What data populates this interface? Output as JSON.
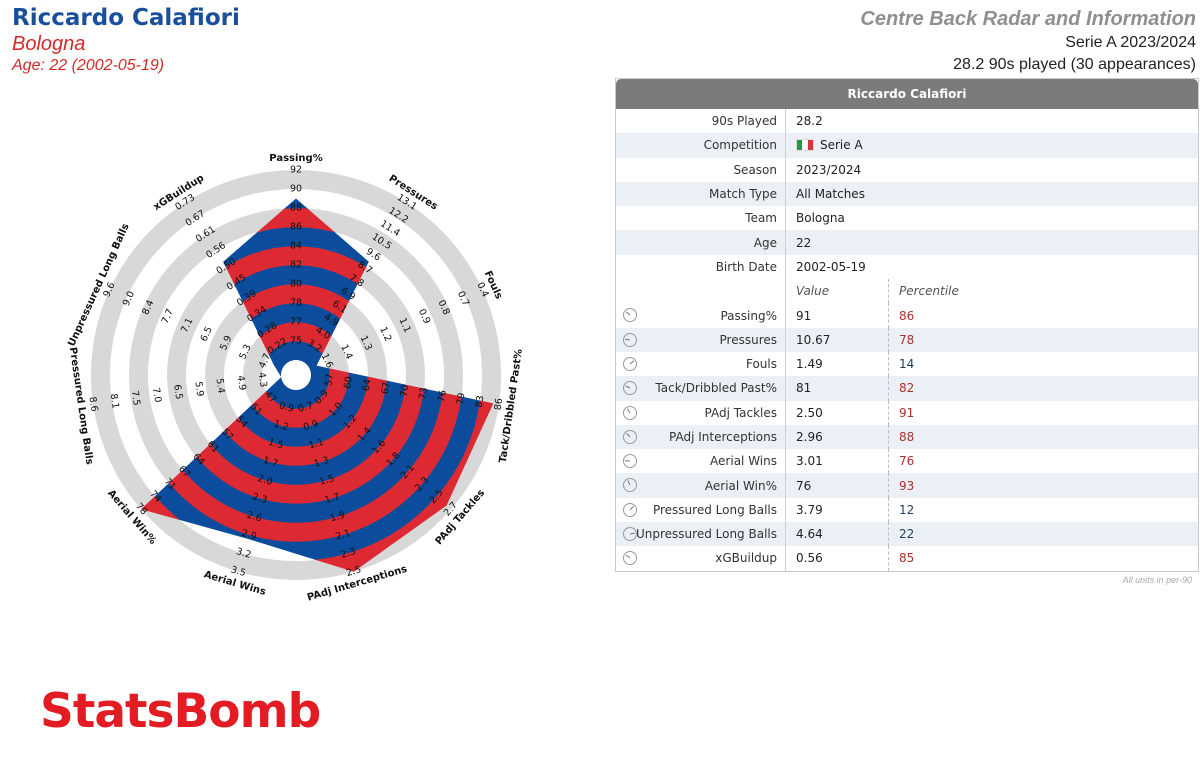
{
  "header": {
    "player_name": "Riccardo Calafiori",
    "team": "Bologna",
    "age_line": "Age: 22 (2002-05-19)",
    "title": "Centre Back Radar and Information",
    "league_season": "Serie A 2023/2024",
    "played": "28.2 90s played (30 appearances)"
  },
  "colors": {
    "blue": "#0b4d9c",
    "red": "#dd2a32",
    "ring_grey": "#d8d8d8",
    "brand": "#e31b23"
  },
  "chart_data": {
    "type": "radar",
    "player": "Riccardo Calafiori",
    "axes": [
      {
        "label": "Passing%",
        "ticks": [
          "75",
          "77",
          "78",
          "80",
          "82",
          "84",
          "86",
          "88",
          "90",
          "92"
        ],
        "value": 91,
        "percentile": 86
      },
      {
        "label": "Pressures",
        "ticks": [
          "3.2",
          "4.0",
          "4.9",
          "6.1",
          "6.9",
          "7.8",
          "8.7",
          "9.6",
          "10.5",
          "11.4",
          "12.2",
          "13.1"
        ],
        "value": 10.67,
        "percentile": 78
      },
      {
        "label": "Fouls",
        "ticks": [
          "1.6",
          "1.4",
          "1.3",
          "1.2",
          "1.1",
          "0.9",
          "0.8",
          "0.7",
          "0.4"
        ],
        "value": 1.49,
        "percentile": 14
      },
      {
        "label": "Tack/Dribbled Past%",
        "ticks": [
          "57",
          "60",
          "64",
          "67",
          "70",
          "73",
          "76",
          "79",
          "83",
          "86"
        ],
        "value": 81,
        "percentile": 82
      },
      {
        "label": "PAdj Tackles",
        "ticks": [
          "0.9",
          "1.0",
          "1.2",
          "1.4",
          "1.6",
          "1.8",
          "2.1",
          "2.3",
          "2.5",
          "2.7"
        ],
        "value": 2.5,
        "percentile": 91
      },
      {
        "label": "PAdj Interceptions",
        "ticks": [
          "0.7",
          "0.9",
          "1.1",
          "1.3",
          "1.5",
          "1.7",
          "1.9",
          "2.1",
          "2.3",
          "2.5"
        ],
        "value": 2.96,
        "percentile": 88
      },
      {
        "label": "Aerial Wins",
        "ticks": [
          "0.9",
          "1.2",
          "1.5",
          "1.7",
          "2.0",
          "2.3",
          "2.6",
          "2.9",
          "3.2",
          "3.5"
        ],
        "value": 3.01,
        "percentile": 76
      },
      {
        "label": "Aerial Win%",
        "ticks": [
          "47",
          "51",
          "54",
          "57",
          "61",
          "64",
          "67",
          "71",
          "74",
          "78"
        ],
        "value": 76,
        "percentile": 93
      },
      {
        "label": "Pressured Long Balls",
        "ticks": [
          "4.3",
          "4.9",
          "5.4",
          "5.9",
          "6.5",
          "7.0",
          "7.5",
          "8.1",
          "8.6"
        ],
        "value": 3.79,
        "percentile": 12
      },
      {
        "label": "Unpressured Long Balls",
        "ticks": [
          "4.7",
          "5.3",
          "5.9",
          "6.5",
          "7.1",
          "7.7",
          "8.4",
          "9.0",
          "9.6"
        ],
        "value": 4.64,
        "percentile": 22
      },
      {
        "label": "xGBuildup",
        "ticks": [
          "0.22",
          "0.28",
          "0.34",
          "0.39",
          "0.45",
          "0.50",
          "0.56",
          "0.61",
          "0.67",
          "0.73"
        ],
        "value": 0.56,
        "percentile": 85
      }
    ],
    "polygon_levels": [
      8.5,
      6.3,
      0.4,
      9.7,
      9.7,
      10,
      8.2,
      10,
      0,
      0.5,
      6.3
    ]
  },
  "table": {
    "header": "Riccardo Calafiori",
    "info": [
      {
        "label": "90s Played",
        "value": "28.2"
      },
      {
        "label": "Competition",
        "value": "Serie A",
        "flag": true
      },
      {
        "label": "Season",
        "value": "2023/2024"
      },
      {
        "label": "Match Type",
        "value": "All Matches"
      },
      {
        "label": "Team",
        "value": "Bologna"
      },
      {
        "label": "Age",
        "value": "22"
      },
      {
        "label": "Birth Date",
        "value": "2002-05-19"
      }
    ],
    "col_value": "Value",
    "col_percentile": "Percentile",
    "metrics": [
      {
        "label": "Passing%",
        "value": "91",
        "percentile": "86",
        "icon": "passing-icon"
      },
      {
        "label": "Pressures",
        "value": "10.67",
        "percentile": "78",
        "icon": "pressures-icon"
      },
      {
        "label": "Fouls",
        "value": "1.49",
        "percentile": "14",
        "icon": "fouls-icon"
      },
      {
        "label": "Tack/Dribbled Past%",
        "value": "81",
        "percentile": "82",
        "icon": "tackles-pct-icon"
      },
      {
        "label": "PAdj Tackles",
        "value": "2.50",
        "percentile": "91",
        "icon": "tackles-icon"
      },
      {
        "label": "PAdj Interceptions",
        "value": "2.96",
        "percentile": "88",
        "icon": "interceptions-icon"
      },
      {
        "label": "Aerial Wins",
        "value": "3.01",
        "percentile": "76",
        "icon": "aerial-wins-icon"
      },
      {
        "label": "Aerial Win%",
        "value": "76",
        "percentile": "93",
        "icon": "aerial-pct-icon"
      },
      {
        "label": "Pressured Long Balls",
        "value": "3.79",
        "percentile": "12",
        "icon": "pressured-long-balls-icon"
      },
      {
        "label": "Unpressured Long Balls",
        "value": "4.64",
        "percentile": "22",
        "icon": "unpressured-long-balls-icon"
      },
      {
        "label": "xGBuildup",
        "value": "0.56",
        "percentile": "85",
        "icon": "xgbuildup-icon"
      }
    ],
    "footnote": "All units in per-90"
  },
  "brand": "StatsBomb"
}
